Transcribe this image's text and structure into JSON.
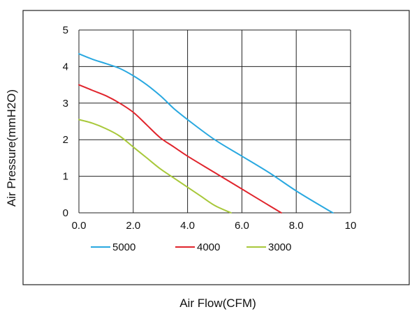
{
  "chart_data": {
    "type": "line",
    "xlabel": "Air Flow(CFM)",
    "ylabel": "Air Pressure(mmH2O)",
    "xlim": [
      0,
      10
    ],
    "ylim": [
      0,
      5
    ],
    "x_ticks": [
      "0.0",
      "2.0",
      "4.0",
      "6.0",
      "8.0",
      "10"
    ],
    "y_ticks": [
      "0",
      "1",
      "2",
      "3",
      "4",
      "5"
    ],
    "grid": true,
    "legend_position": "bottom-left, below axes",
    "series": [
      {
        "name": "5000",
        "color": "#29a8e0",
        "points": [
          [
            0,
            4.35
          ],
          [
            0.5,
            4.2
          ],
          [
            1.0,
            4.08
          ],
          [
            1.5,
            3.95
          ],
          [
            2.0,
            3.75
          ],
          [
            2.5,
            3.5
          ],
          [
            3.0,
            3.2
          ],
          [
            3.5,
            2.85
          ],
          [
            4.0,
            2.55
          ],
          [
            5.0,
            2.0
          ],
          [
            6.0,
            1.55
          ],
          [
            7.0,
            1.1
          ],
          [
            8.0,
            0.6
          ],
          [
            9.0,
            0.15
          ],
          [
            9.35,
            0
          ]
        ]
      },
      {
        "name": "4000",
        "color": "#e0242c",
        "points": [
          [
            0,
            3.5
          ],
          [
            0.5,
            3.35
          ],
          [
            1.0,
            3.2
          ],
          [
            1.5,
            3.0
          ],
          [
            2.0,
            2.75
          ],
          [
            2.5,
            2.4
          ],
          [
            3.0,
            2.05
          ],
          [
            3.5,
            1.8
          ],
          [
            4.0,
            1.55
          ],
          [
            5.0,
            1.1
          ],
          [
            6.0,
            0.65
          ],
          [
            7.0,
            0.2
          ],
          [
            7.45,
            0
          ]
        ]
      },
      {
        "name": "3000",
        "color": "#a8c83a",
        "points": [
          [
            0,
            2.55
          ],
          [
            0.5,
            2.45
          ],
          [
            1.0,
            2.3
          ],
          [
            1.5,
            2.1
          ],
          [
            2.0,
            1.8
          ],
          [
            2.5,
            1.5
          ],
          [
            3.0,
            1.2
          ],
          [
            3.5,
            0.95
          ],
          [
            4.0,
            0.7
          ],
          [
            4.5,
            0.45
          ],
          [
            5.0,
            0.2
          ],
          [
            5.6,
            0
          ]
        ]
      }
    ]
  }
}
